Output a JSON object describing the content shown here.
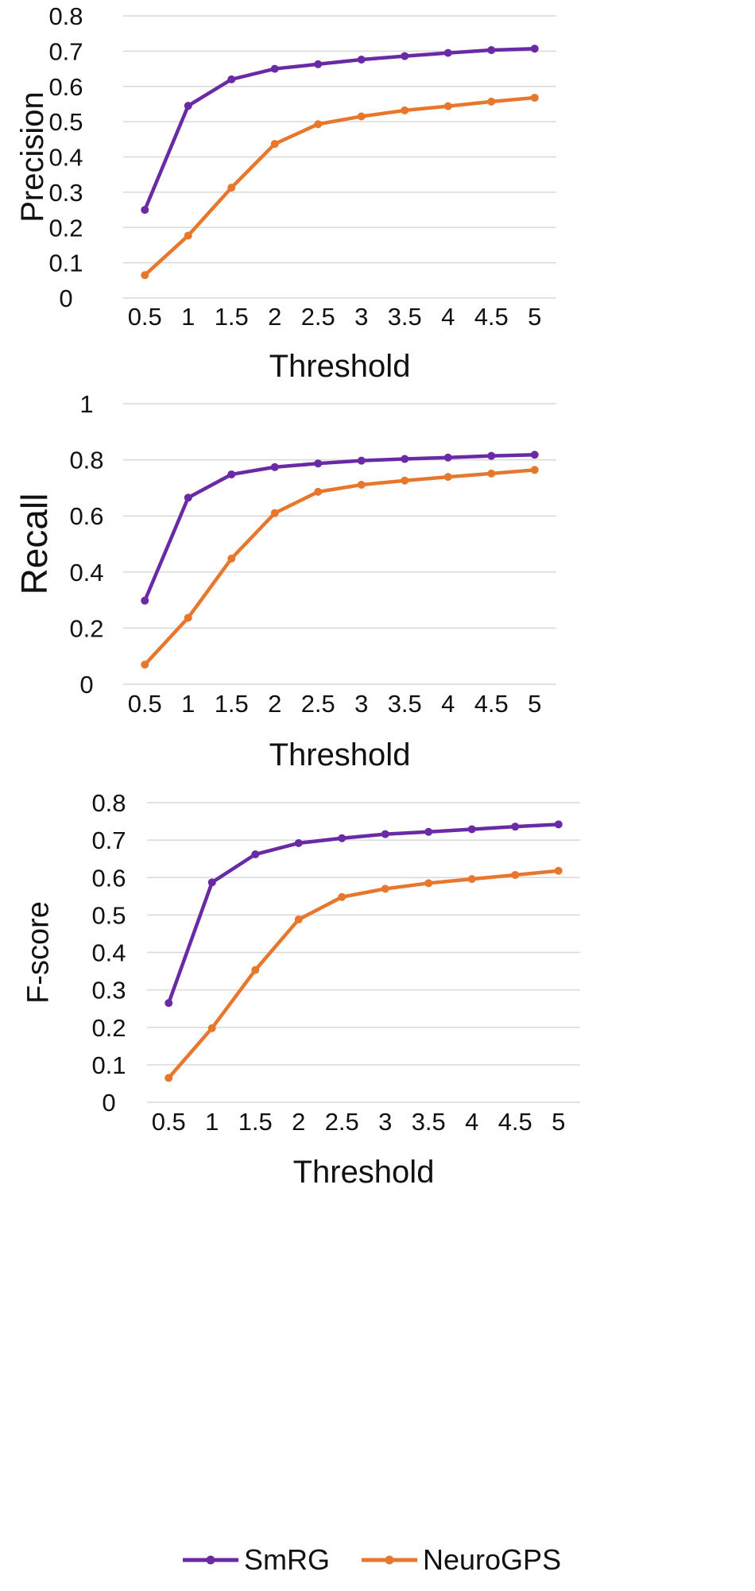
{
  "colors": {
    "SmRG": "#6a2aa6",
    "NeuroGPS": "#e8772e",
    "grid": "#d9d9d9"
  },
  "legend": {
    "position": "bottom",
    "items": [
      "SmRG",
      "NeuroGPS"
    ]
  },
  "chart_data": [
    {
      "type": "line",
      "xlabel": "Threshold",
      "ylabel": "Precision",
      "categories": [
        "0.5",
        "1",
        "1.5",
        "2",
        "2.5",
        "3",
        "3.5",
        "4",
        "4.5",
        "5"
      ],
      "ylim": [
        0,
        0.8
      ],
      "yticks": [
        "0",
        "0.1",
        "0.2",
        "0.3",
        "0.4",
        "0.5",
        "0.6",
        "0.7",
        "0.8"
      ],
      "grid": true,
      "series": [
        {
          "name": "SmRG",
          "values": [
            0.25,
            0.545,
            0.62,
            0.65,
            0.663,
            0.676,
            0.686,
            0.695,
            0.703,
            0.707
          ]
        },
        {
          "name": "NeuroGPS",
          "values": [
            0.065,
            0.177,
            0.313,
            0.437,
            0.493,
            0.515,
            0.532,
            0.544,
            0.557,
            0.568
          ]
        }
      ]
    },
    {
      "type": "line",
      "xlabel": "Threshold",
      "ylabel": "Recall",
      "categories": [
        "0.5",
        "1",
        "1.5",
        "2",
        "2.5",
        "3",
        "3.5",
        "4",
        "4.5",
        "5"
      ],
      "ylim": [
        0,
        1
      ],
      "yticks": [
        "0",
        "0.2",
        "0.4",
        "0.6",
        "0.8",
        "1"
      ],
      "grid": true,
      "series": [
        {
          "name": "SmRG",
          "values": [
            0.298,
            0.665,
            0.748,
            0.774,
            0.787,
            0.797,
            0.803,
            0.808,
            0.814,
            0.818
          ]
        },
        {
          "name": "NeuroGPS",
          "values": [
            0.07,
            0.237,
            0.448,
            0.61,
            0.686,
            0.711,
            0.726,
            0.739,
            0.751,
            0.764
          ]
        }
      ]
    },
    {
      "type": "line",
      "xlabel": "Threshold",
      "ylabel": "F-score",
      "categories": [
        "0.5",
        "1",
        "1.5",
        "2",
        "2.5",
        "3",
        "3.5",
        "4",
        "4.5",
        "5"
      ],
      "ylim": [
        0,
        0.8
      ],
      "yticks": [
        "0",
        "0.1",
        "0.2",
        "0.3",
        "0.4",
        "0.5",
        "0.6",
        "0.7",
        "0.8"
      ],
      "grid": true,
      "series": [
        {
          "name": "SmRG",
          "values": [
            0.265,
            0.587,
            0.662,
            0.692,
            0.705,
            0.716,
            0.722,
            0.729,
            0.736,
            0.742
          ]
        },
        {
          "name": "NeuroGPS",
          "values": [
            0.065,
            0.198,
            0.353,
            0.488,
            0.548,
            0.57,
            0.585,
            0.596,
            0.607,
            0.618
          ]
        }
      ]
    }
  ]
}
